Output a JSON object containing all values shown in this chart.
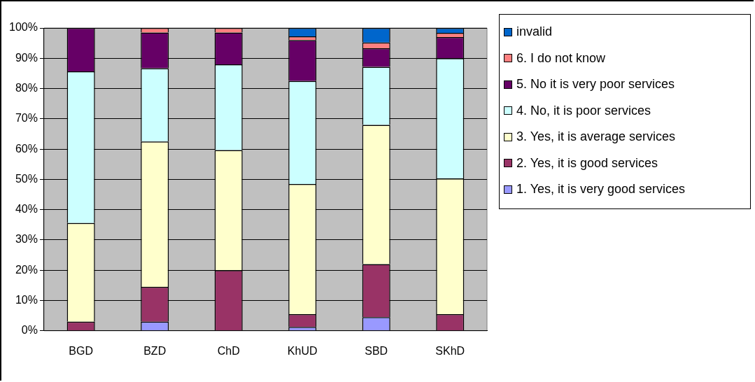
{
  "chart_data": {
    "type": "bar",
    "stacked": true,
    "categories": [
      "BGD",
      "BZD",
      "ChD",
      "KhUD",
      "SBD",
      "SKhD"
    ],
    "ylim": [
      0,
      100
    ],
    "yticks": [
      {
        "value": 0,
        "label": "0%"
      },
      {
        "value": 10,
        "label": "10%"
      },
      {
        "value": 20,
        "label": "20%"
      },
      {
        "value": 30,
        "label": "30%"
      },
      {
        "value": 40,
        "label": "40%"
      },
      {
        "value": 50,
        "label": "50%"
      },
      {
        "value": 60,
        "label": "60%"
      },
      {
        "value": 70,
        "label": "70%"
      },
      {
        "value": 80,
        "label": "80%"
      },
      {
        "value": 90,
        "label": "90%"
      },
      {
        "value": 100,
        "label": "100%"
      }
    ],
    "grid": "y",
    "legend": "right",
    "series": [
      {
        "name": "1. Yes, it is very good services",
        "color": "#9999ff",
        "values": [
          0,
          3,
          0,
          1.3,
          4.5,
          0
        ]
      },
      {
        "name": "2. Yes, it is good services",
        "color": "#993366",
        "values": [
          3,
          11.5,
          20,
          4.2,
          17.5,
          5.5
        ]
      },
      {
        "name": "3. Yes, it is average services",
        "color": "#ffffcc",
        "values": [
          32.6,
          48,
          39.7,
          43,
          46,
          44.8
        ]
      },
      {
        "name": "4. No, it is poor services",
        "color": "#ccffff",
        "values": [
          50.1,
          24.2,
          28.3,
          34,
          19.2,
          39.7
        ]
      },
      {
        "name": "5. No it is very poor services",
        "color": "#660066",
        "values": [
          14.3,
          11.8,
          10.5,
          13.5,
          6.1,
          7
        ]
      },
      {
        "name": "6. I do not know",
        "color": "#ff8080",
        "values": [
          0,
          1.5,
          1.5,
          1.2,
          1.9,
          1.4
        ]
      },
      {
        "name": "invalid",
        "color": "#0066cc",
        "values": [
          0,
          0,
          0,
          2.8,
          4.8,
          1.6
        ]
      }
    ]
  }
}
